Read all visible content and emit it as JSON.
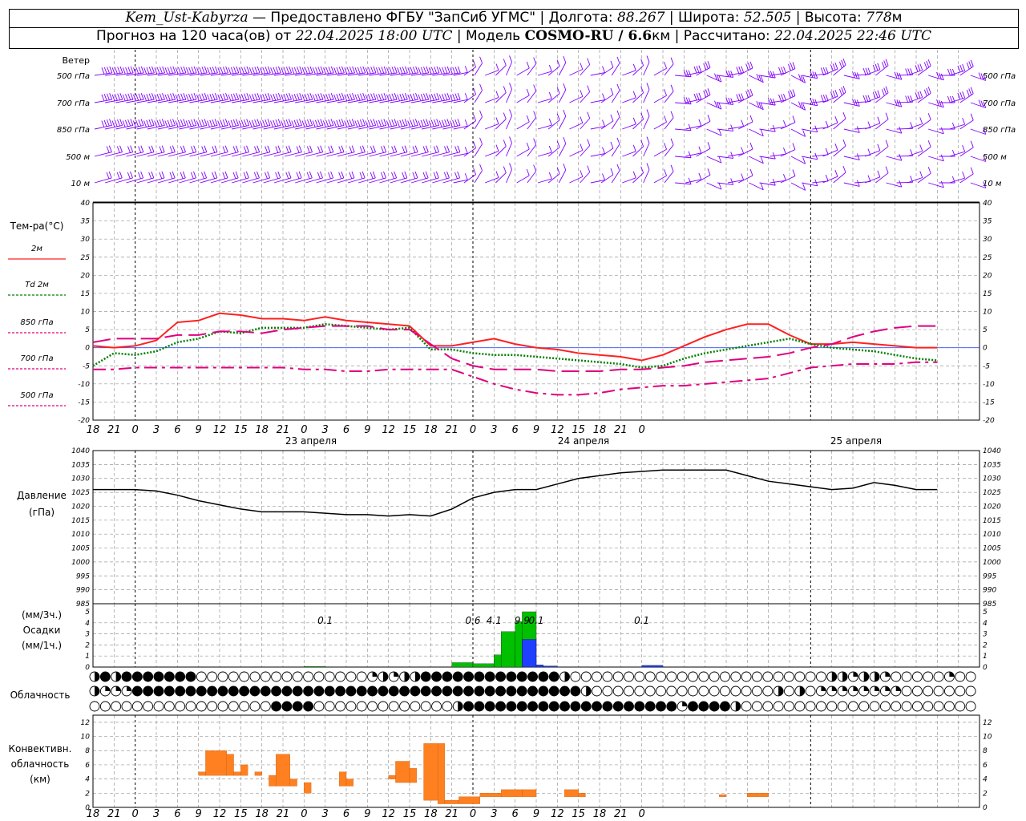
{
  "header": {
    "station": "Kem_Ust-Kabyrza",
    "provider": " — Предоставлено ФГБУ \"ЗапСиб УГМС\" | Долгота: ",
    "lon": "88.267",
    "lat_label": " | Широта: ",
    "lat": "52.505",
    "alt_label": " | Высота: ",
    "alt": "778",
    "alt_unit": "м",
    "forecast_prefix": "Прогноз на 120 часа(ов) от ",
    "forecast_time": "22.04.2025 18:00 UTC",
    "model_label": " | Модель ",
    "model": "COSMO-RU / 6.6",
    "model_unit": "км",
    "calc_label": " | Рассчитано: ",
    "calc_time": "22.04.2025 22:46 UTC"
  },
  "time_axis": {
    "hour_labels": [
      "18",
      "21",
      "0",
      "3",
      "6",
      "9",
      "12",
      "15",
      "18",
      "21",
      "0",
      "3",
      "6",
      "9",
      "12",
      "15",
      "18",
      "21",
      "0",
      "3",
      "6",
      "9",
      "12",
      "15",
      "18",
      "21",
      "0"
    ],
    "day_labels": [
      "23 апреля",
      "24 апреля",
      "25 апреля"
    ]
  },
  "wind_panel": {
    "title": "Ветер",
    "levels": [
      "500 гПа",
      "700 гПа",
      "850 гПа",
      "500 м",
      "10  м"
    ],
    "color": "#8000ff"
  },
  "cloud_panel": {
    "title": "Облачность"
  },
  "convective_panel": {
    "title_lines": [
      "Конвективн.",
      "облачность",
      "(км)"
    ]
  },
  "chart_data": [
    {
      "type": "line",
      "title": "Тем-ра(°C)",
      "ylim": [
        -20,
        40
      ],
      "y_ticks": [
        40,
        35,
        30,
        25,
        20,
        15,
        10,
        5,
        0,
        -5,
        -10,
        -15,
        -20
      ],
      "grid": true,
      "x_hours": [
        0,
        3,
        6,
        9,
        12,
        15,
        18,
        21,
        24,
        27,
        30,
        33,
        36,
        39,
        42,
        45,
        48,
        51,
        54,
        57,
        60,
        63,
        66,
        69,
        72,
        75,
        78,
        81,
        84,
        87,
        90,
        93,
        96,
        99,
        102,
        105,
        108,
        111,
        114,
        117,
        120
      ],
      "series": [
        {
          "name": "2м",
          "color": "#ff2020",
          "style": "solid",
          "values": [
            0.5,
            0,
            0.5,
            2,
            7,
            7.5,
            9.5,
            9,
            8,
            8,
            7.5,
            8.5,
            7.5,
            7,
            6.5,
            6,
            0.5,
            0.5,
            1.5,
            2.5,
            1,
            0,
            -0.5,
            -1.5,
            -2,
            -2.5,
            -3.5,
            -2,
            0.5,
            3,
            5,
            6.5,
            6.5,
            3.5,
            1,
            1,
            1.5,
            1,
            0.5,
            0,
            0
          ]
        },
        {
          "name": "Td  2м",
          "color": "#008000",
          "style": "dotted",
          "values": [
            -5,
            -1.5,
            -2,
            -1,
            1.5,
            2.5,
            4.5,
            4,
            5.5,
            5.5,
            5.5,
            6.5,
            6,
            5.5,
            5,
            5.5,
            -0.5,
            -0.5,
            -1.5,
            -2,
            -2,
            -2.5,
            -3,
            -3.5,
            -4,
            -4.5,
            -5.5,
            -5,
            -3,
            -1.5,
            -0.5,
            0.5,
            1.5,
            2.5,
            1,
            0,
            -0.5,
            -1,
            -2,
            -3,
            -3.5
          ]
        },
        {
          "name": "850 гПа",
          "color": "#e0007f",
          "style": "longdash",
          "values": [
            1.5,
            2.5,
            2.5,
            2.5,
            3.5,
            3.5,
            4.5,
            4.5,
            4,
            5,
            5.5,
            6,
            6,
            6,
            5,
            5,
            1,
            -3,
            -5,
            -6,
            -6,
            -6,
            -6.5,
            -6.5,
            -6.5,
            -6,
            -6,
            -5.5,
            -5,
            -4,
            -3.5,
            -3,
            -2.5,
            -1.5,
            0,
            1,
            3,
            4.5,
            5.5,
            6,
            6
          ]
        },
        {
          "name": "700 гПа",
          "color": "#e0007f",
          "style": "dashdot",
          "values": [
            -6,
            -6,
            -5.5,
            -5.5,
            -5.5,
            -5.5,
            -5.5,
            -5.5,
            -5.5,
            -5.5,
            -6,
            -6,
            -6.5,
            -6.5,
            -6,
            -6,
            -6,
            -6,
            -8,
            -10,
            -11.5,
            -12.5,
            -13,
            -13,
            -12.5,
            -11.5,
            -11,
            -10.5,
            -10.5,
            -10,
            -9.5,
            -9,
            -8.5,
            -7,
            -5.5,
            -5,
            -4.5,
            -4.5,
            -4.5,
            -4,
            -4
          ]
        },
        {
          "name": "500 гПа",
          "color": "#e0007f",
          "style": "dashed",
          "values": []
        }
      ]
    },
    {
      "type": "line",
      "title": "Давление",
      "ylabel": "(гПа)",
      "ylim": [
        985,
        1040
      ],
      "y_ticks": [
        1040,
        1035,
        1030,
        1025,
        1020,
        1015,
        1010,
        1005,
        1000,
        995,
        990,
        985
      ],
      "grid": true,
      "x_hours": [
        0,
        3,
        6,
        9,
        12,
        15,
        18,
        21,
        24,
        27,
        30,
        33,
        36,
        39,
        42,
        45,
        48,
        51,
        54,
        57,
        60,
        63,
        66,
        69,
        72,
        75,
        78,
        81,
        84,
        87,
        90,
        93,
        96,
        99,
        102,
        105,
        108,
        111,
        114,
        117,
        120
      ],
      "series": [
        {
          "name": "",
          "color": "#000000",
          "values": [
            1026,
            1026,
            1026,
            1025.5,
            1024,
            1022,
            1020.5,
            1019,
            1018,
            1018,
            1018,
            1017.5,
            1017,
            1017,
            1016.5,
            1017,
            1016.5,
            1019,
            1023,
            1025,
            1026,
            1026,
            1028,
            1030,
            1031,
            1032,
            1032.5,
            1033,
            1033,
            1033,
            1033,
            1031,
            1029,
            1028,
            1027,
            1026,
            1026.5,
            1028.5,
            1027.5,
            1026,
            1026
          ]
        }
      ]
    },
    {
      "type": "bar",
      "title": "Осадки",
      "ylabel": "(мм/3ч.)",
      "y2label": "(мм/1ч.)",
      "ylim": [
        0,
        5
      ],
      "y_ticks": [
        5,
        4,
        3,
        2,
        1,
        0
      ],
      "grid": true,
      "totals": [
        {
          "hour": 33,
          "label": "0.1"
        },
        {
          "hour": 54,
          "label": "0.6"
        },
        {
          "hour": 57,
          "label": "4.1"
        },
        {
          "hour": 61,
          "label": "9.9"
        },
        {
          "hour": 63,
          "label": "0.1"
        },
        {
          "hour": 78,
          "label": "0.1"
        }
      ],
      "series": [
        {
          "name": "мм/3ч.",
          "color": "#00c000",
          "bars": [
            {
              "h0": 30,
              "h1": 33,
              "v": 0.05
            },
            {
              "h0": 51,
              "h1": 54,
              "v": 0.4
            },
            {
              "h0": 54,
              "h1": 57,
              "v": 0.3
            },
            {
              "h0": 57,
              "h1": 60,
              "v": 1.1
            },
            {
              "h0": 58,
              "h1": 60,
              "v": 3.2
            },
            {
              "h0": 60,
              "h1": 62,
              "v": 4.1
            },
            {
              "h0": 61,
              "h1": 63,
              "v": 5
            },
            {
              "h0": 63,
              "h1": 65,
              "v": 0.05
            }
          ]
        },
        {
          "name": "мм/1ч.",
          "color": "#2040ff",
          "bars": [
            {
              "h0": 61,
              "h1": 63,
              "v": 2.5
            },
            {
              "h0": 63,
              "h1": 64,
              "v": 0.2
            },
            {
              "h0": 64,
              "h1": 66,
              "v": 0.1
            },
            {
              "h0": 78,
              "h1": 81,
              "v": 0.15
            }
          ]
        }
      ]
    },
    {
      "type": "bar",
      "title": "Конвективн. облачность (км)",
      "ylim": [
        0,
        13
      ],
      "y_ticks": [
        12,
        10,
        8,
        6,
        4,
        2,
        0
      ],
      "grid": true,
      "series": [
        {
          "name": "",
          "color": "#ff8020",
          "bars": [
            {
              "h0": 15,
              "h1": 16,
              "b": 4.5,
              "t": 5
            },
            {
              "h0": 16,
              "h1": 19,
              "b": 4.5,
              "t": 8
            },
            {
              "h0": 19,
              "h1": 20,
              "b": 4.5,
              "t": 7.5
            },
            {
              "h0": 20,
              "h1": 21,
              "b": 4.5,
              "t": 5
            },
            {
              "h0": 21,
              "h1": 22,
              "b": 4.5,
              "t": 6
            },
            {
              "h0": 23,
              "h1": 24,
              "b": 4.5,
              "t": 5
            },
            {
              "h0": 25,
              "h1": 26,
              "b": 3,
              "t": 4.5
            },
            {
              "h0": 26,
              "h1": 28,
              "b": 3,
              "t": 7.5
            },
            {
              "h0": 28,
              "h1": 29,
              "b": 3,
              "t": 4
            },
            {
              "h0": 30,
              "h1": 31,
              "b": 2,
              "t": 3.5
            },
            {
              "h0": 35,
              "h1": 36,
              "b": 3,
              "t": 5
            },
            {
              "h0": 36,
              "h1": 37,
              "b": 3,
              "t": 4
            },
            {
              "h0": 42,
              "h1": 43,
              "b": 4,
              "t": 4.5
            },
            {
              "h0": 43,
              "h1": 45,
              "b": 3.5,
              "t": 6.5
            },
            {
              "h0": 45,
              "h1": 46,
              "b": 3.5,
              "t": 5.5
            },
            {
              "h0": 47,
              "h1": 49,
              "b": 1,
              "t": 9
            },
            {
              "h0": 49,
              "h1": 50,
              "b": 0.5,
              "t": 9
            },
            {
              "h0": 50,
              "h1": 52,
              "b": 0.5,
              "t": 1
            },
            {
              "h0": 52,
              "h1": 55,
              "b": 0.5,
              "t": 1.5
            },
            {
              "h0": 55,
              "h1": 58,
              "b": 1.5,
              "t": 2
            },
            {
              "h0": 58,
              "h1": 61,
              "b": 1.5,
              "t": 2.5
            },
            {
              "h0": 61,
              "h1": 63,
              "b": 1.5,
              "t": 2.5
            },
            {
              "h0": 67,
              "h1": 69,
              "b": 1.5,
              "t": 2.5
            },
            {
              "h0": 69,
              "h1": 70,
              "b": 1.5,
              "t": 2
            },
            {
              "h0": 89,
              "h1": 90,
              "b": 1.5,
              "t": 1.8
            },
            {
              "h0": 93,
              "h1": 96,
              "b": 1.5,
              "t": 2
            }
          ]
        }
      ]
    }
  ]
}
